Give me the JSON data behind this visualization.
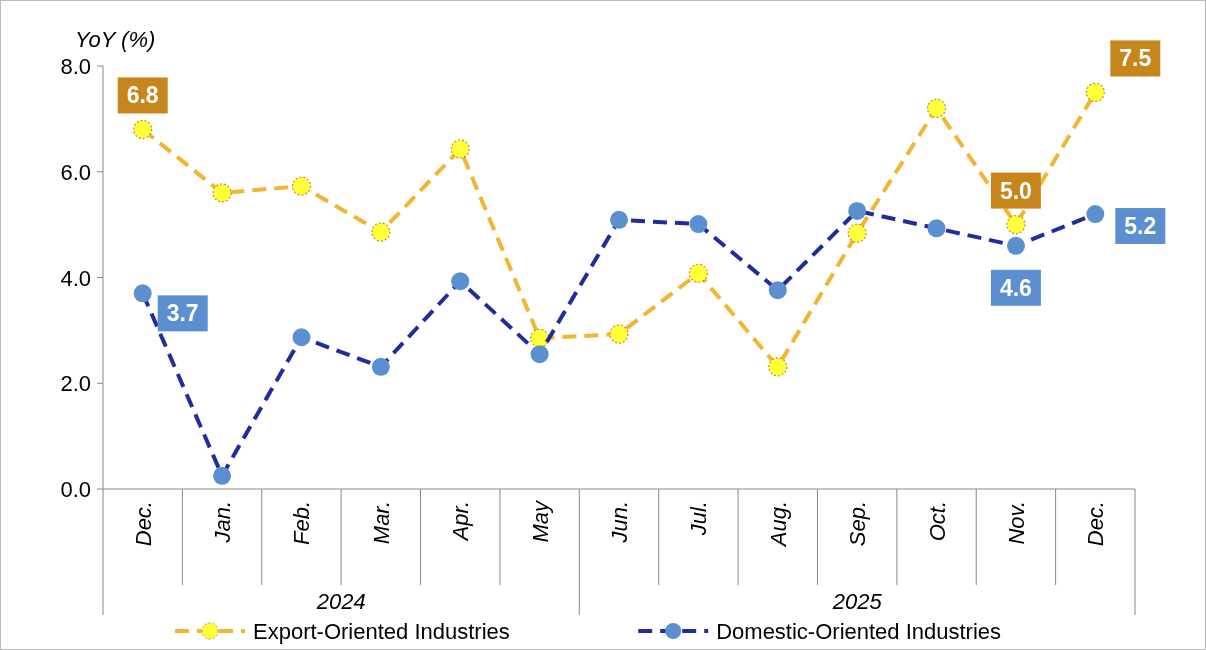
{
  "chart_data": {
    "type": "line",
    "ylabel": "YoY (%)",
    "categories": [
      "Dec.",
      "Jan.",
      "Feb.",
      "Mar.",
      "Apr.",
      "May",
      "Jun.",
      "Jul.",
      "Aug.",
      "Sep.",
      "Oct.",
      "Nov.",
      "Dec."
    ],
    "annotations": [
      "2024",
      "2025"
    ],
    "ylim": [
      0,
      8
    ],
    "yticks": [
      {
        "value": 0,
        "label": "0.0"
      },
      {
        "value": 2,
        "label": "2.0"
      },
      {
        "value": 4,
        "label": "4.0"
      },
      {
        "value": 6,
        "label": "6.0"
      },
      {
        "value": 8,
        "label": "8.0"
      }
    ],
    "grid": false,
    "legend": "bottom",
    "marker": "circle",
    "line_style": "dashed",
    "series": [
      {
        "name": "Export-Oriented Industries",
        "color": "#f2b530",
        "values": [
          6.8,
          5.6,
          5.73,
          4.86,
          6.43,
          2.85,
          2.93,
          4.08,
          2.31,
          4.84,
          7.2,
          5.0,
          7.5
        ],
        "value_labels": [
          "6.8",
          null,
          null,
          null,
          null,
          null,
          null,
          null,
          null,
          null,
          null,
          "5.0",
          "7.5"
        ]
      },
      {
        "name": "Domestic-Oriented Industries",
        "color": "#202c9e",
        "values": [
          3.7,
          0.25,
          2.87,
          2.31,
          3.93,
          2.55,
          5.09,
          5.01,
          3.76,
          5.26,
          4.93,
          4.6,
          5.2
        ],
        "value_labels": [
          "3.7",
          null,
          null,
          null,
          null,
          null,
          null,
          null,
          null,
          null,
          null,
          "4.6",
          "5.2"
        ]
      }
    ]
  }
}
